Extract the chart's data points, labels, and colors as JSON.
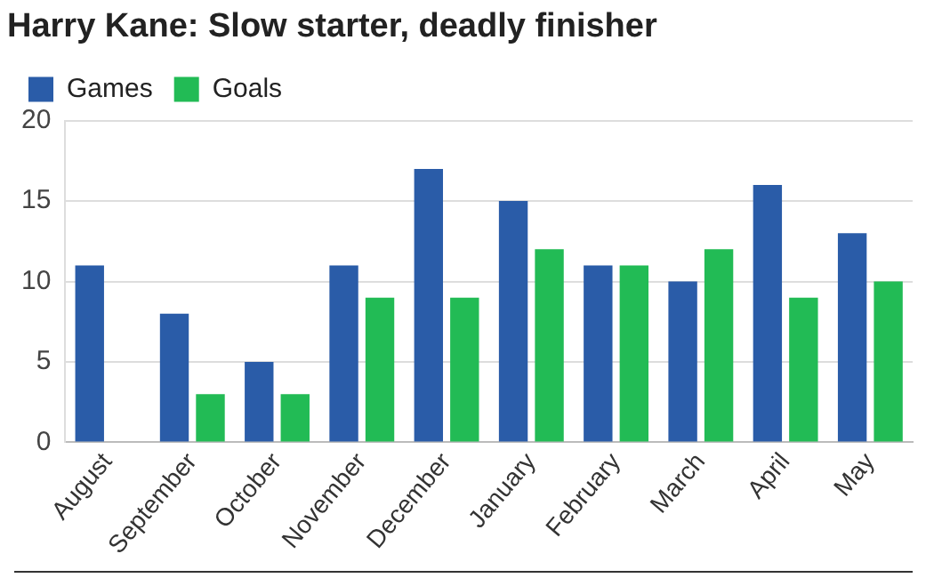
{
  "chart_data": {
    "type": "bar",
    "title": "Harry Kane: Slow starter, deadly finisher",
    "categories": [
      "August",
      "September",
      "October",
      "November",
      "December",
      "January",
      "February",
      "March",
      "April",
      "May"
    ],
    "series": [
      {
        "name": "Games",
        "color": "#2a5ca8",
        "values": [
          11,
          8,
          5,
          11,
          17,
          15,
          11,
          10,
          16,
          13
        ]
      },
      {
        "name": "Goals",
        "color": "#22bb55",
        "values": [
          0,
          3,
          3,
          9,
          9,
          12,
          11,
          12,
          9,
          10
        ]
      }
    ],
    "ylim": [
      0,
      20
    ],
    "yticks": [
      0,
      5,
      10,
      15,
      20
    ],
    "grid": "y",
    "legend": "top left"
  }
}
